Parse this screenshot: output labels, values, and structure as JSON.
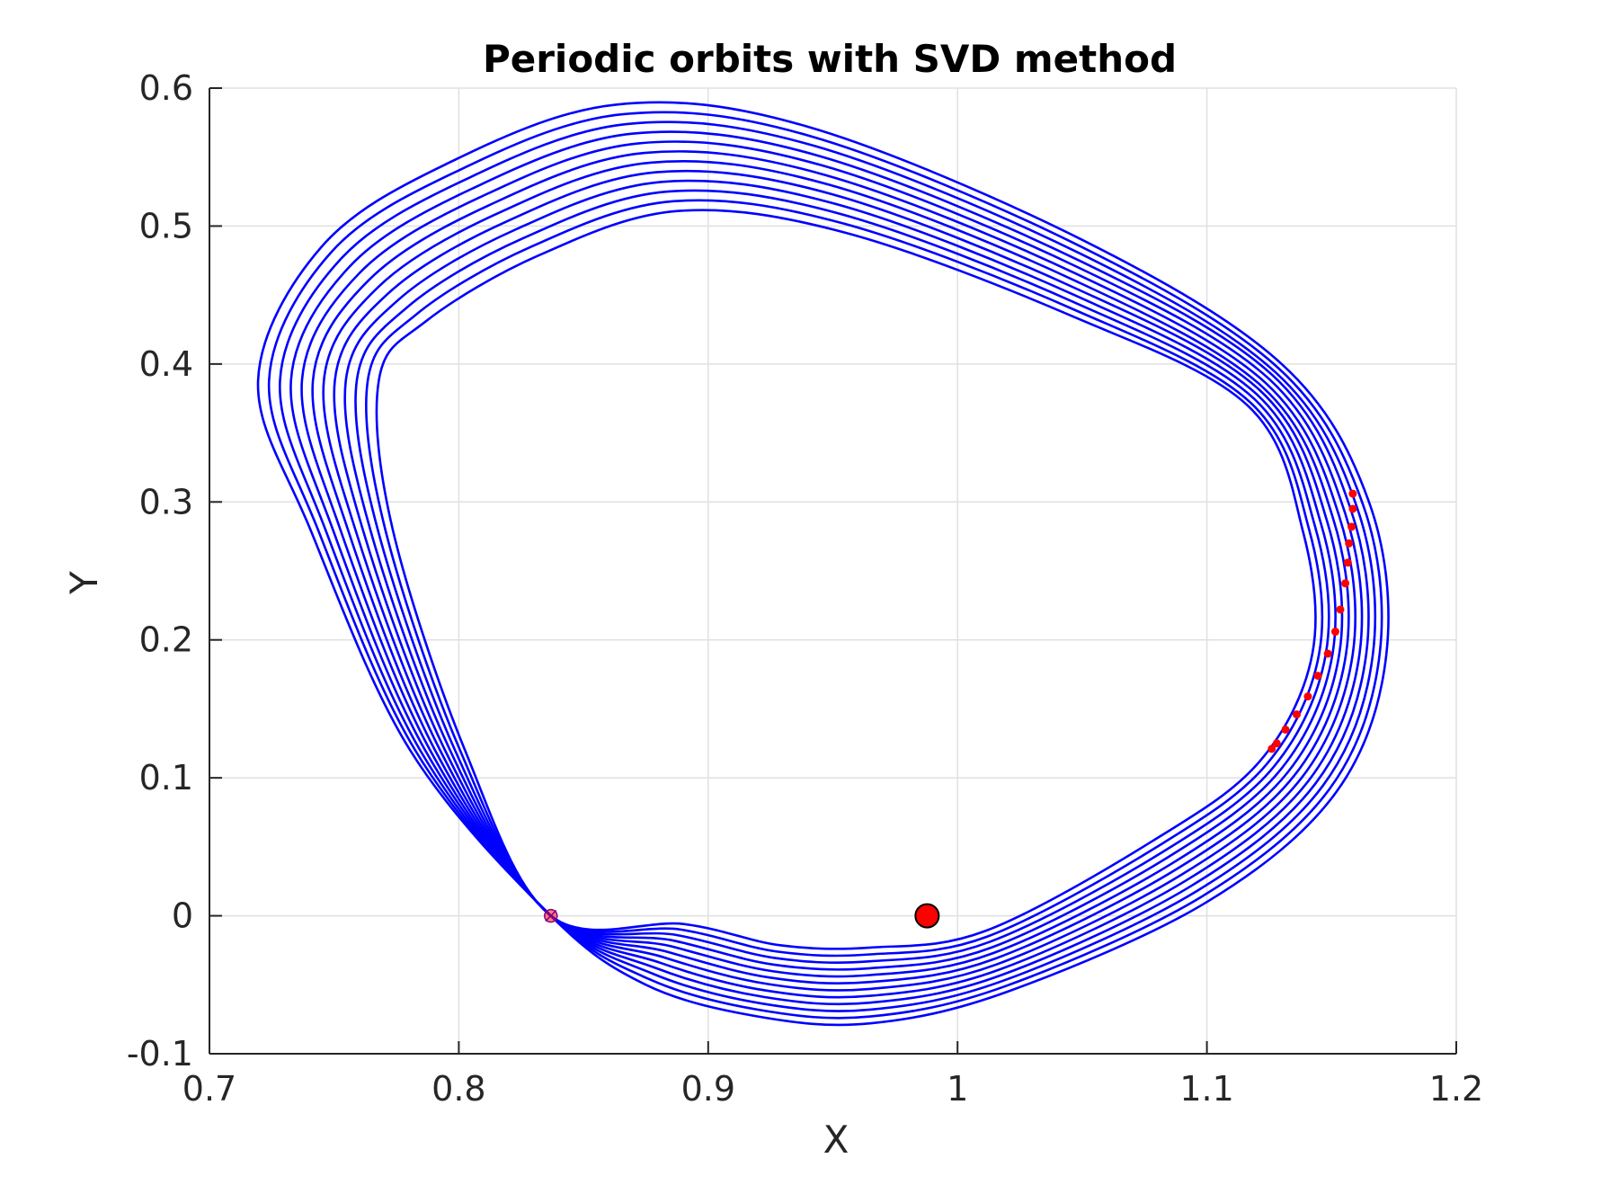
{
  "chart_data": {
    "type": "line",
    "title": "Periodic orbits with SVD method",
    "xlabel": "X",
    "ylabel": "Y",
    "xlim": [
      0.7,
      1.2
    ],
    "ylim": [
      -0.1,
      0.6
    ],
    "xticks": [
      0.7,
      0.8,
      0.9,
      1.0,
      1.1,
      1.2
    ],
    "xtick_labels": [
      "0.7",
      "0.8",
      "0.9",
      "1",
      "1.1",
      "1.2"
    ],
    "yticks": [
      -0.1,
      0,
      0.1,
      0.2,
      0.3,
      0.4,
      0.5,
      0.6
    ],
    "ytick_labels": [
      "-0.1",
      "0",
      "0.1",
      "0.2",
      "0.3",
      "0.4",
      "0.5",
      "0.6"
    ],
    "grid": true,
    "colors": {
      "orbit": "#0000ff",
      "marker": "#ff0000",
      "axis": "#262626",
      "grid": "#e0e0e0"
    },
    "series": [
      {
        "values": [
          [
            0.8369,
            0.0
          ],
          [
            0.7805,
            0.12
          ],
          [
            0.7405,
            0.28
          ],
          [
            0.7195,
            0.388
          ],
          [
            0.745,
            0.485
          ],
          [
            0.795,
            0.545
          ],
          [
            0.863,
            0.588
          ],
          [
            0.94,
            0.572
          ],
          [
            1.05,
            0.49
          ],
          [
            1.13,
            0.4
          ],
          [
            1.165,
            0.3
          ],
          [
            1.172,
            0.19
          ],
          [
            1.152,
            0.09
          ],
          [
            1.1,
            0.01
          ],
          [
            1.02,
            -0.055
          ],
          [
            0.965,
            -0.078
          ],
          [
            0.92,
            -0.073
          ],
          [
            0.875,
            -0.05
          ],
          [
            0.8369,
            0.0
          ]
        ]
      },
      {
        "values": [
          [
            0.8369,
            0.0
          ],
          [
            0.7825,
            0.12
          ],
          [
            0.7435,
            0.28
          ],
          [
            0.7239,
            0.388
          ],
          [
            0.7488,
            0.481
          ],
          [
            0.7984,
            0.539
          ],
          [
            0.8653,
            0.581
          ],
          [
            0.9414,
            0.565
          ],
          [
            1.0496,
            0.485
          ],
          [
            1.1287,
            0.397
          ],
          [
            1.1626,
            0.298
          ],
          [
            1.1693,
            0.19
          ],
          [
            1.1492,
            0.092
          ],
          [
            1.098,
            0.014
          ],
          [
            1.0192,
            -0.051
          ],
          [
            0.965,
            -0.073
          ],
          [
            0.9208,
            -0.0683
          ],
          [
            0.8764,
            -0.046
          ],
          [
            0.8369,
            0.0
          ]
        ]
      },
      {
        "values": [
          [
            0.8369,
            0.0
          ],
          [
            0.7845,
            0.12
          ],
          [
            0.7465,
            0.28
          ],
          [
            0.7283,
            0.388
          ],
          [
            0.7526,
            0.476
          ],
          [
            0.8018,
            0.533
          ],
          [
            0.8676,
            0.574
          ],
          [
            0.9428,
            0.558
          ],
          [
            1.0492,
            0.48
          ],
          [
            1.1275,
            0.394
          ],
          [
            1.1602,
            0.296
          ],
          [
            1.1666,
            0.19
          ],
          [
            1.1464,
            0.094
          ],
          [
            1.096,
            0.018
          ],
          [
            1.0184,
            -0.047
          ],
          [
            0.965,
            -0.068
          ],
          [
            0.9216,
            -0.0636
          ],
          [
            0.8778,
            -0.042
          ],
          [
            0.8369,
            0.0
          ]
        ]
      },
      {
        "values": [
          [
            0.8369,
            0.0
          ],
          [
            0.7865,
            0.12
          ],
          [
            0.7495,
            0.28
          ],
          [
            0.7327,
            0.388
          ],
          [
            0.7564,
            0.471
          ],
          [
            0.8052,
            0.527
          ],
          [
            0.8699,
            0.567
          ],
          [
            0.9442,
            0.551
          ],
          [
            1.0488,
            0.475
          ],
          [
            1.1262,
            0.392
          ],
          [
            1.1578,
            0.294
          ],
          [
            1.1639,
            0.19
          ],
          [
            1.1436,
            0.096
          ],
          [
            1.094,
            0.022
          ],
          [
            1.0176,
            -0.043
          ],
          [
            0.965,
            -0.063
          ],
          [
            0.9224,
            -0.0589
          ],
          [
            0.8792,
            -0.038
          ],
          [
            0.8369,
            0.0
          ]
        ]
      },
      {
        "values": [
          [
            0.8369,
            0.0
          ],
          [
            0.7885,
            0.12
          ],
          [
            0.7525,
            0.28
          ],
          [
            0.7371,
            0.388
          ],
          [
            0.7602,
            0.466
          ],
          [
            0.8086,
            0.521
          ],
          [
            0.8722,
            0.56
          ],
          [
            0.9456,
            0.544
          ],
          [
            1.0484,
            0.47
          ],
          [
            1.125,
            0.389
          ],
          [
            1.1554,
            0.292
          ],
          [
            1.1612,
            0.19
          ],
          [
            1.1408,
            0.098
          ],
          [
            1.092,
            0.026
          ],
          [
            1.0168,
            -0.039
          ],
          [
            0.965,
            -0.058
          ],
          [
            0.9232,
            -0.0542
          ],
          [
            0.8806,
            -0.034
          ],
          [
            0.8369,
            0.0
          ]
        ]
      },
      {
        "values": [
          [
            0.8369,
            0.0
          ],
          [
            0.7905,
            0.12
          ],
          [
            0.7555,
            0.28
          ],
          [
            0.7415,
            0.388
          ],
          [
            0.764,
            0.461
          ],
          [
            0.812,
            0.515
          ],
          [
            0.8745,
            0.553
          ],
          [
            0.947,
            0.537
          ],
          [
            1.048,
            0.465
          ],
          [
            1.1237,
            0.386
          ],
          [
            1.153,
            0.29
          ],
          [
            1.1585,
            0.19
          ],
          [
            1.138,
            0.1
          ],
          [
            1.09,
            0.03
          ],
          [
            1.016,
            -0.035
          ],
          [
            0.965,
            -0.053
          ],
          [
            0.924,
            -0.0495
          ],
          [
            0.882,
            -0.03
          ],
          [
            0.8369,
            0.0
          ]
        ]
      },
      {
        "values": [
          [
            0.8369,
            0.0
          ],
          [
            0.7925,
            0.12
          ],
          [
            0.7585,
            0.28
          ],
          [
            0.7459,
            0.388
          ],
          [
            0.7678,
            0.456
          ],
          [
            0.8154,
            0.509
          ],
          [
            0.8768,
            0.546
          ],
          [
            0.9484,
            0.53
          ],
          [
            1.0476,
            0.46
          ],
          [
            1.1225,
            0.383
          ],
          [
            1.1506,
            0.288
          ],
          [
            1.1558,
            0.19
          ],
          [
            1.1352,
            0.102
          ],
          [
            1.088,
            0.034
          ],
          [
            1.0152,
            -0.031
          ],
          [
            0.965,
            -0.048
          ],
          [
            0.9248,
            -0.0448
          ],
          [
            0.8834,
            -0.026
          ],
          [
            0.8369,
            0.0
          ]
        ]
      },
      {
        "values": [
          [
            0.8369,
            0.0
          ],
          [
            0.7945,
            0.12
          ],
          [
            0.7615,
            0.28
          ],
          [
            0.7503,
            0.388
          ],
          [
            0.7716,
            0.451
          ],
          [
            0.8188,
            0.503
          ],
          [
            0.8791,
            0.539
          ],
          [
            0.9498,
            0.523
          ],
          [
            1.0472,
            0.455
          ],
          [
            1.1212,
            0.381
          ],
          [
            1.1482,
            0.286
          ],
          [
            1.1531,
            0.19
          ],
          [
            1.1324,
            0.104
          ],
          [
            1.086,
            0.038
          ],
          [
            1.0144,
            -0.027
          ],
          [
            0.965,
            -0.043
          ],
          [
            0.9256,
            -0.0401
          ],
          [
            0.8848,
            -0.022
          ],
          [
            0.8369,
            0.0
          ]
        ]
      },
      {
        "values": [
          [
            0.8369,
            0.0
          ],
          [
            0.7965,
            0.12
          ],
          [
            0.7645,
            0.28
          ],
          [
            0.7547,
            0.388
          ],
          [
            0.7754,
            0.446
          ],
          [
            0.8222,
            0.497
          ],
          [
            0.8814,
            0.532
          ],
          [
            0.9512,
            0.516
          ],
          [
            1.0468,
            0.45
          ],
          [
            1.12,
            0.378
          ],
          [
            1.1458,
            0.284
          ],
          [
            1.1504,
            0.19
          ],
          [
            1.1296,
            0.106
          ],
          [
            1.084,
            0.042
          ],
          [
            1.0136,
            -0.023
          ],
          [
            0.965,
            -0.038
          ],
          [
            0.9264,
            -0.0354
          ],
          [
            0.8862,
            -0.018
          ],
          [
            0.8369,
            0.0
          ]
        ]
      },
      {
        "values": [
          [
            0.8369,
            0.0
          ],
          [
            0.7985,
            0.12
          ],
          [
            0.7675,
            0.28
          ],
          [
            0.7591,
            0.388
          ],
          [
            0.7792,
            0.441
          ],
          [
            0.8256,
            0.491
          ],
          [
            0.8837,
            0.525
          ],
          [
            0.9526,
            0.509
          ],
          [
            1.0464,
            0.445
          ],
          [
            1.1188,
            0.375
          ],
          [
            1.1434,
            0.282
          ],
          [
            1.1477,
            0.19
          ],
          [
            1.1268,
            0.108
          ],
          [
            1.082,
            0.046
          ],
          [
            1.0128,
            -0.019
          ],
          [
            0.965,
            -0.033
          ],
          [
            0.9272,
            -0.0307
          ],
          [
            0.8876,
            -0.014
          ],
          [
            0.8369,
            0.0
          ]
        ]
      },
      {
        "values": [
          [
            0.8369,
            0.0
          ],
          [
            0.8005,
            0.12
          ],
          [
            0.7705,
            0.28
          ],
          [
            0.7635,
            0.388
          ],
          [
            0.783,
            0.436
          ],
          [
            0.829,
            0.485
          ],
          [
            0.886,
            0.518
          ],
          [
            0.954,
            0.502
          ],
          [
            1.046,
            0.44
          ],
          [
            1.1175,
            0.372
          ],
          [
            1.141,
            0.28
          ],
          [
            1.145,
            0.19
          ],
          [
            1.124,
            0.11
          ],
          [
            1.08,
            0.05
          ],
          [
            1.012,
            -0.015
          ],
          [
            0.965,
            -0.028
          ],
          [
            0.928,
            -0.026
          ],
          [
            0.889,
            -0.01
          ],
          [
            0.8369,
            0.0
          ]
        ]
      },
      {
        "values": [
          [
            0.8369,
            0.0
          ],
          [
            0.8025,
            0.12
          ],
          [
            0.7735,
            0.28
          ],
          [
            0.7679,
            0.388
          ],
          [
            0.7868,
            0.431
          ],
          [
            0.8324,
            0.479
          ],
          [
            0.8883,
            0.511
          ],
          [
            0.9554,
            0.495
          ],
          [
            1.0456,
            0.435
          ],
          [
            1.1163,
            0.37
          ],
          [
            1.1386,
            0.278
          ],
          [
            1.1423,
            0.19
          ],
          [
            1.1212,
            0.112
          ],
          [
            1.078,
            0.054
          ],
          [
            1.0112,
            -0.011
          ],
          [
            0.965,
            -0.023
          ],
          [
            0.9288,
            -0.0213
          ],
          [
            0.8904,
            -0.006
          ],
          [
            0.8369,
            0.0
          ]
        ]
      }
    ],
    "markers": [
      [
        1.1585,
        0.306
      ],
      [
        1.1585,
        0.295
      ],
      [
        1.158,
        0.282
      ],
      [
        1.157,
        0.27
      ],
      [
        1.1565,
        0.256
      ],
      [
        1.1555,
        0.241
      ],
      [
        1.1535,
        0.222
      ],
      [
        1.1515,
        0.206
      ],
      [
        1.1485,
        0.19
      ],
      [
        1.1445,
        0.174
      ],
      [
        1.1405,
        0.159
      ],
      [
        1.136,
        0.146
      ],
      [
        1.1315,
        0.135
      ],
      [
        1.128,
        0.125
      ],
      [
        1.126,
        0.121
      ]
    ],
    "small_body": [
      0.8369,
      0.0
    ],
    "primary_body": [
      0.9878,
      0.0
    ]
  }
}
